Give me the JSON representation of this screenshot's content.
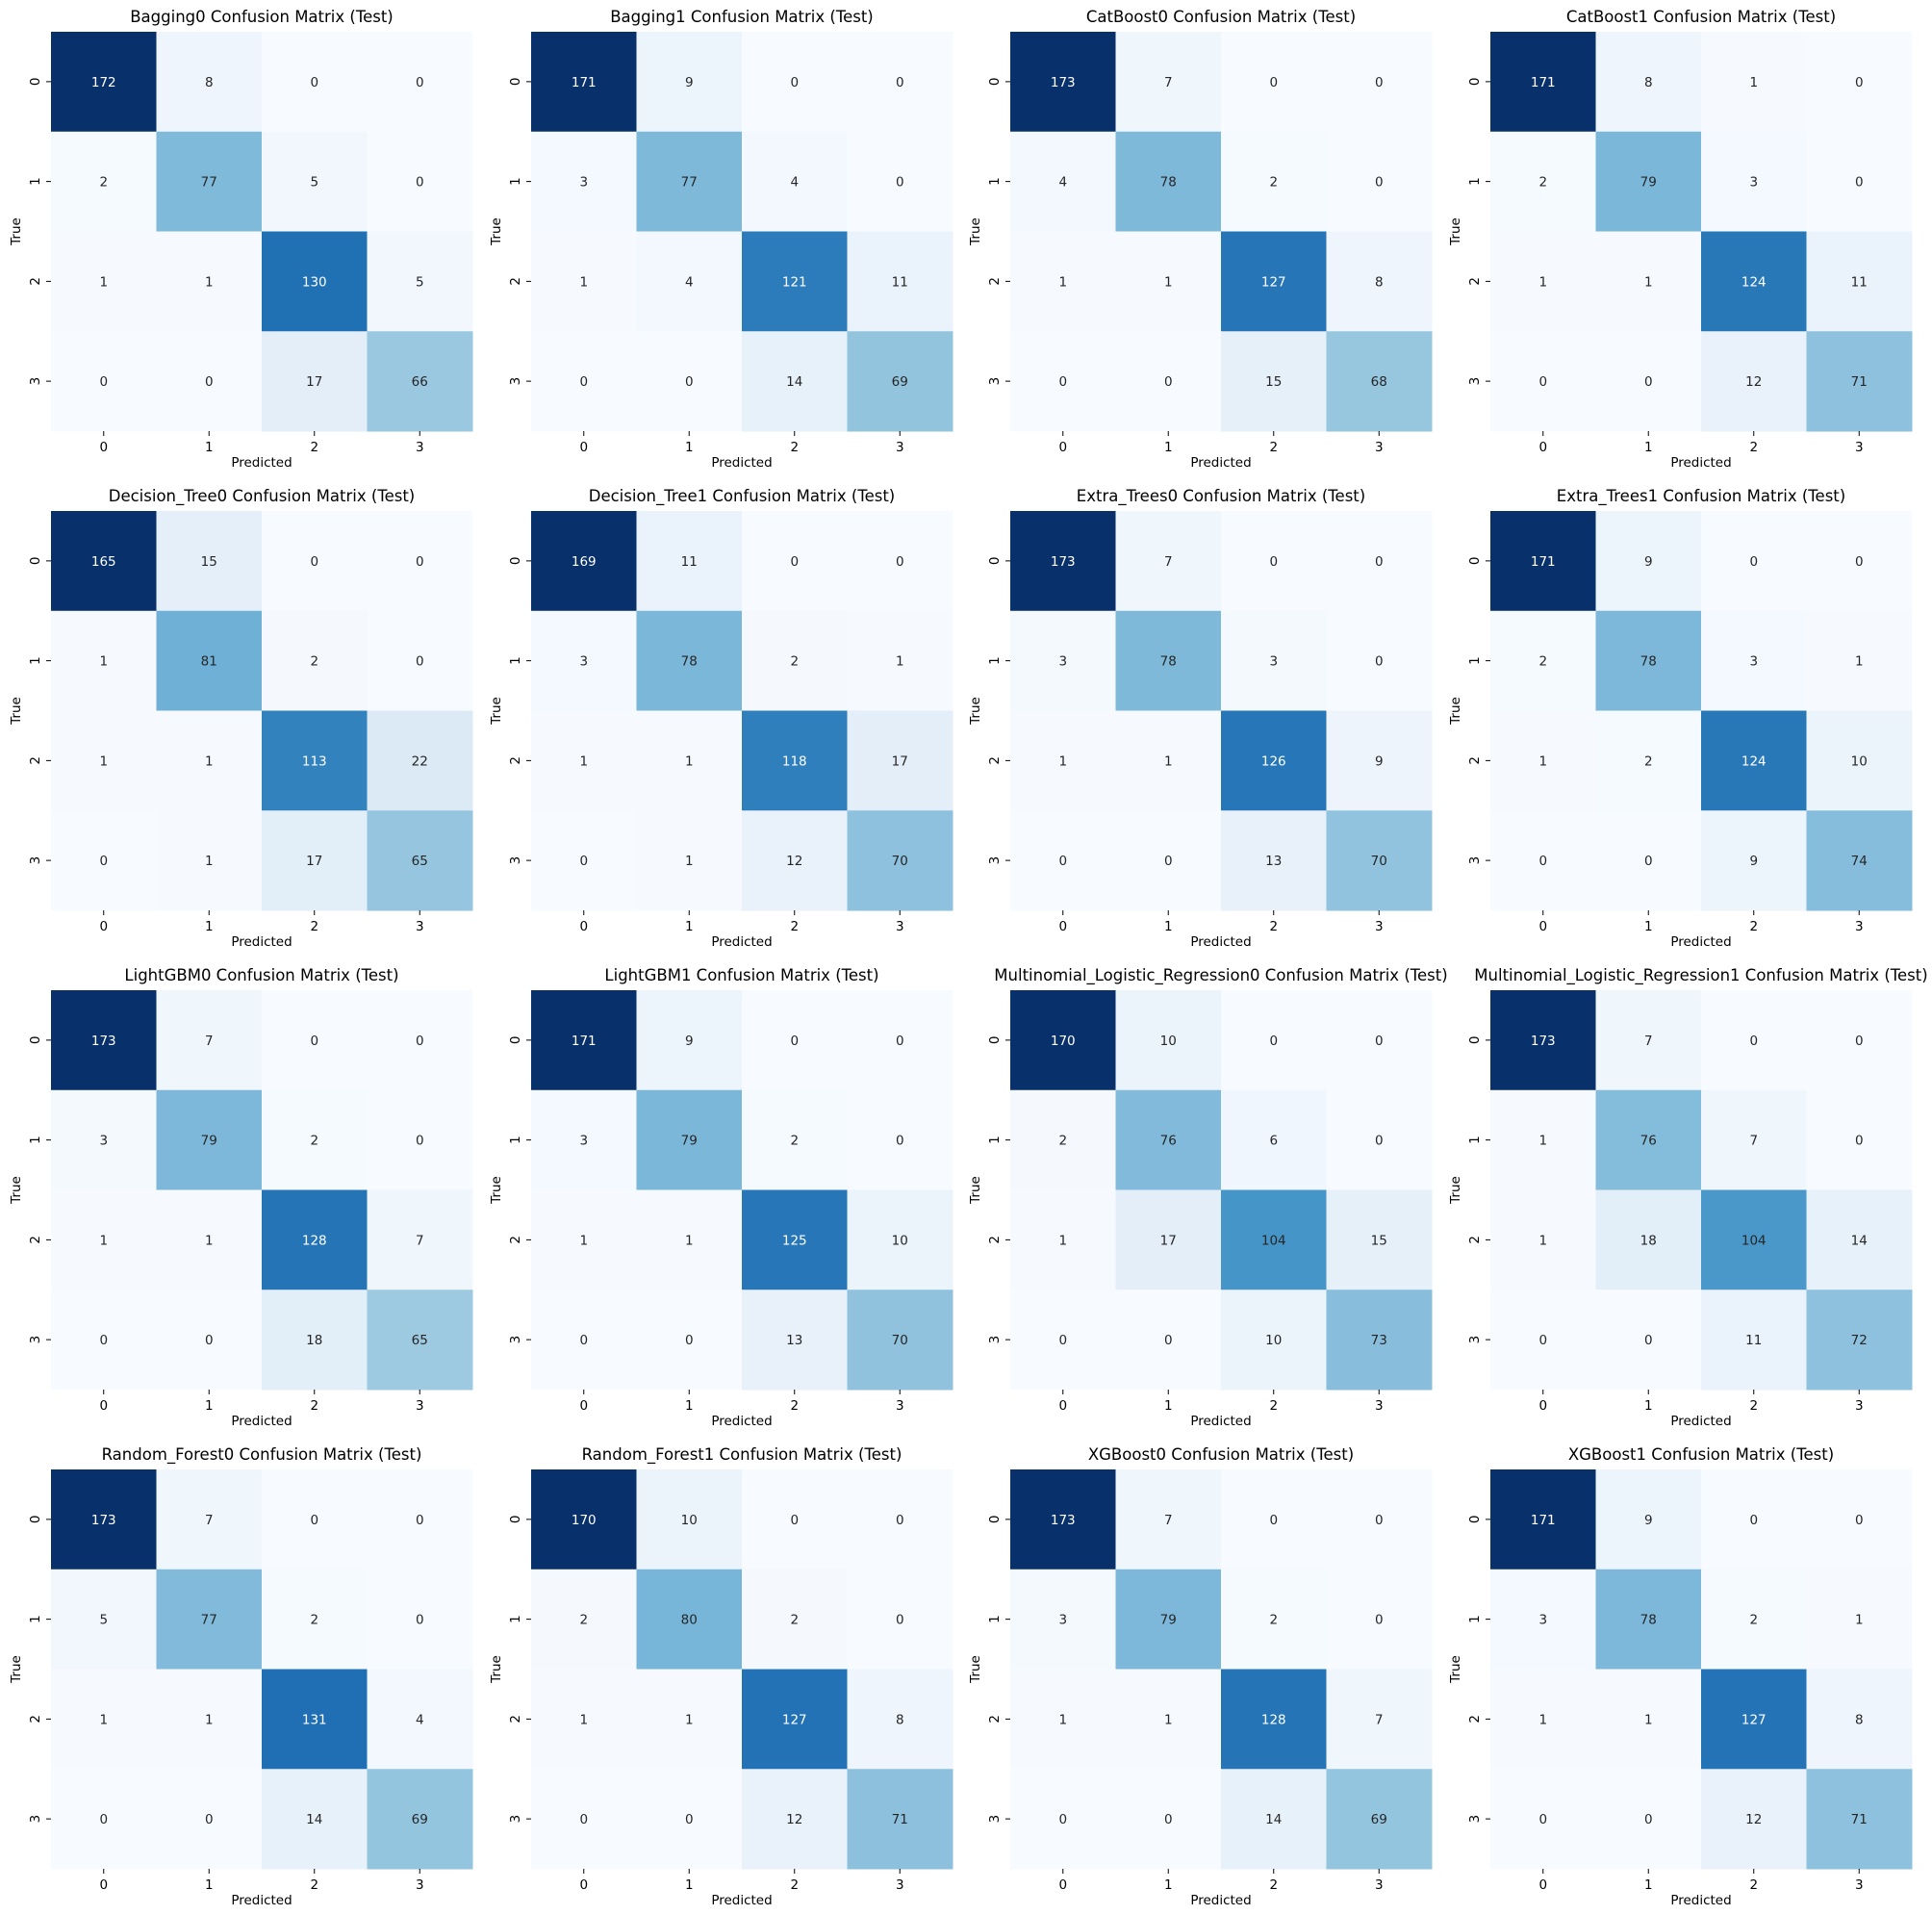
{
  "chart_data": [
    {
      "type": "heatmap",
      "title": "Bagging0 Confusion Matrix (Test)",
      "xlabel": "Predicted",
      "ylabel": "True",
      "x_ticks": [
        "0",
        "1",
        "2",
        "3"
      ],
      "y_ticks": [
        "0",
        "1",
        "2",
        "3"
      ],
      "matrix": [
        [
          172,
          8,
          0,
          0
        ],
        [
          2,
          77,
          5,
          0
        ],
        [
          1,
          1,
          130,
          5
        ],
        [
          0,
          0,
          17,
          66
        ]
      ]
    },
    {
      "type": "heatmap",
      "title": "Bagging1 Confusion Matrix (Test)",
      "xlabel": "Predicted",
      "ylabel": "True",
      "x_ticks": [
        "0",
        "1",
        "2",
        "3"
      ],
      "y_ticks": [
        "0",
        "1",
        "2",
        "3"
      ],
      "matrix": [
        [
          171,
          9,
          0,
          0
        ],
        [
          3,
          77,
          4,
          0
        ],
        [
          1,
          4,
          121,
          11
        ],
        [
          0,
          0,
          14,
          69
        ]
      ]
    },
    {
      "type": "heatmap",
      "title": "CatBoost0 Confusion Matrix (Test)",
      "xlabel": "Predicted",
      "ylabel": "True",
      "x_ticks": [
        "0",
        "1",
        "2",
        "3"
      ],
      "y_ticks": [
        "0",
        "1",
        "2",
        "3"
      ],
      "matrix": [
        [
          173,
          7,
          0,
          0
        ],
        [
          4,
          78,
          2,
          0
        ],
        [
          1,
          1,
          127,
          8
        ],
        [
          0,
          0,
          15,
          68
        ]
      ]
    },
    {
      "type": "heatmap",
      "title": "CatBoost1 Confusion Matrix (Test)",
      "xlabel": "Predicted",
      "ylabel": "True",
      "x_ticks": [
        "0",
        "1",
        "2",
        "3"
      ],
      "y_ticks": [
        "0",
        "1",
        "2",
        "3"
      ],
      "matrix": [
        [
          171,
          8,
          1,
          0
        ],
        [
          2,
          79,
          3,
          0
        ],
        [
          1,
          1,
          124,
          11
        ],
        [
          0,
          0,
          12,
          71
        ]
      ]
    },
    {
      "type": "heatmap",
      "title": "Decision_Tree0 Confusion Matrix (Test)",
      "xlabel": "Predicted",
      "ylabel": "True",
      "x_ticks": [
        "0",
        "1",
        "2",
        "3"
      ],
      "y_ticks": [
        "0",
        "1",
        "2",
        "3"
      ],
      "matrix": [
        [
          165,
          15,
          0,
          0
        ],
        [
          1,
          81,
          2,
          0
        ],
        [
          1,
          1,
          113,
          22
        ],
        [
          0,
          1,
          17,
          65
        ]
      ]
    },
    {
      "type": "heatmap",
      "title": "Decision_Tree1 Confusion Matrix (Test)",
      "xlabel": "Predicted",
      "ylabel": "True",
      "x_ticks": [
        "0",
        "1",
        "2",
        "3"
      ],
      "y_ticks": [
        "0",
        "1",
        "2",
        "3"
      ],
      "matrix": [
        [
          169,
          11,
          0,
          0
        ],
        [
          3,
          78,
          2,
          1
        ],
        [
          1,
          1,
          118,
          17
        ],
        [
          0,
          1,
          12,
          70
        ]
      ]
    },
    {
      "type": "heatmap",
      "title": "Extra_Trees0 Confusion Matrix (Test)",
      "xlabel": "Predicted",
      "ylabel": "True",
      "x_ticks": [
        "0",
        "1",
        "2",
        "3"
      ],
      "y_ticks": [
        "0",
        "1",
        "2",
        "3"
      ],
      "matrix": [
        [
          173,
          7,
          0,
          0
        ],
        [
          3,
          78,
          3,
          0
        ],
        [
          1,
          1,
          126,
          9
        ],
        [
          0,
          0,
          13,
          70
        ]
      ]
    },
    {
      "type": "heatmap",
      "title": "Extra_Trees1 Confusion Matrix (Test)",
      "xlabel": "Predicted",
      "ylabel": "True",
      "x_ticks": [
        "0",
        "1",
        "2",
        "3"
      ],
      "y_ticks": [
        "0",
        "1",
        "2",
        "3"
      ],
      "matrix": [
        [
          171,
          9,
          0,
          0
        ],
        [
          2,
          78,
          3,
          1
        ],
        [
          1,
          2,
          124,
          10
        ],
        [
          0,
          0,
          9,
          74
        ]
      ]
    },
    {
      "type": "heatmap",
      "title": "LightGBM0 Confusion Matrix (Test)",
      "xlabel": "Predicted",
      "ylabel": "True",
      "x_ticks": [
        "0",
        "1",
        "2",
        "3"
      ],
      "y_ticks": [
        "0",
        "1",
        "2",
        "3"
      ],
      "matrix": [
        [
          173,
          7,
          0,
          0
        ],
        [
          3,
          79,
          2,
          0
        ],
        [
          1,
          1,
          128,
          7
        ],
        [
          0,
          0,
          18,
          65
        ]
      ]
    },
    {
      "type": "heatmap",
      "title": "LightGBM1 Confusion Matrix (Test)",
      "xlabel": "Predicted",
      "ylabel": "True",
      "x_ticks": [
        "0",
        "1",
        "2",
        "3"
      ],
      "y_ticks": [
        "0",
        "1",
        "2",
        "3"
      ],
      "matrix": [
        [
          171,
          9,
          0,
          0
        ],
        [
          3,
          79,
          2,
          0
        ],
        [
          1,
          1,
          125,
          10
        ],
        [
          0,
          0,
          13,
          70
        ]
      ]
    },
    {
      "type": "heatmap",
      "title": "Multinomial_Logistic_Regression0 Confusion Matrix (Test)",
      "xlabel": "Predicted",
      "ylabel": "True",
      "x_ticks": [
        "0",
        "1",
        "2",
        "3"
      ],
      "y_ticks": [
        "0",
        "1",
        "2",
        "3"
      ],
      "matrix": [
        [
          170,
          10,
          0,
          0
        ],
        [
          2,
          76,
          6,
          0
        ],
        [
          1,
          17,
          104,
          15
        ],
        [
          0,
          0,
          10,
          73
        ]
      ]
    },
    {
      "type": "heatmap",
      "title": "Multinomial_Logistic_Regression1 Confusion Matrix (Test)",
      "xlabel": "Predicted",
      "ylabel": "True",
      "x_ticks": [
        "0",
        "1",
        "2",
        "3"
      ],
      "y_ticks": [
        "0",
        "1",
        "2",
        "3"
      ],
      "matrix": [
        [
          173,
          7,
          0,
          0
        ],
        [
          1,
          76,
          7,
          0
        ],
        [
          1,
          18,
          104,
          14
        ],
        [
          0,
          0,
          11,
          72
        ]
      ]
    },
    {
      "type": "heatmap",
      "title": "Random_Forest0 Confusion Matrix (Test)",
      "xlabel": "Predicted",
      "ylabel": "True",
      "x_ticks": [
        "0",
        "1",
        "2",
        "3"
      ],
      "y_ticks": [
        "0",
        "1",
        "2",
        "3"
      ],
      "matrix": [
        [
          173,
          7,
          0,
          0
        ],
        [
          5,
          77,
          2,
          0
        ],
        [
          1,
          1,
          131,
          4
        ],
        [
          0,
          0,
          14,
          69
        ]
      ]
    },
    {
      "type": "heatmap",
      "title": "Random_Forest1 Confusion Matrix (Test)",
      "xlabel": "Predicted",
      "ylabel": "True",
      "x_ticks": [
        "0",
        "1",
        "2",
        "3"
      ],
      "y_ticks": [
        "0",
        "1",
        "2",
        "3"
      ],
      "matrix": [
        [
          170,
          10,
          0,
          0
        ],
        [
          2,
          80,
          2,
          0
        ],
        [
          1,
          1,
          127,
          8
        ],
        [
          0,
          0,
          12,
          71
        ]
      ]
    },
    {
      "type": "heatmap",
      "title": "XGBoost0 Confusion Matrix (Test)",
      "xlabel": "Predicted",
      "ylabel": "True",
      "x_ticks": [
        "0",
        "1",
        "2",
        "3"
      ],
      "y_ticks": [
        "0",
        "1",
        "2",
        "3"
      ],
      "matrix": [
        [
          173,
          7,
          0,
          0
        ],
        [
          3,
          79,
          2,
          0
        ],
        [
          1,
          1,
          128,
          7
        ],
        [
          0,
          0,
          14,
          69
        ]
      ]
    },
    {
      "type": "heatmap",
      "title": "XGBoost1 Confusion Matrix (Test)",
      "xlabel": "Predicted",
      "ylabel": "True",
      "x_ticks": [
        "0",
        "1",
        "2",
        "3"
      ],
      "y_ticks": [
        "0",
        "1",
        "2",
        "3"
      ],
      "matrix": [
        [
          171,
          9,
          0,
          0
        ],
        [
          3,
          78,
          2,
          1
        ],
        [
          1,
          1,
          127,
          8
        ],
        [
          0,
          0,
          12,
          71
        ]
      ]
    }
  ],
  "colormap": [
    "#f7fbff",
    "#deebf7",
    "#c6dbef",
    "#9ecae1",
    "#6baed6",
    "#4292c6",
    "#2171b5",
    "#08519c",
    "#08306b"
  ]
}
